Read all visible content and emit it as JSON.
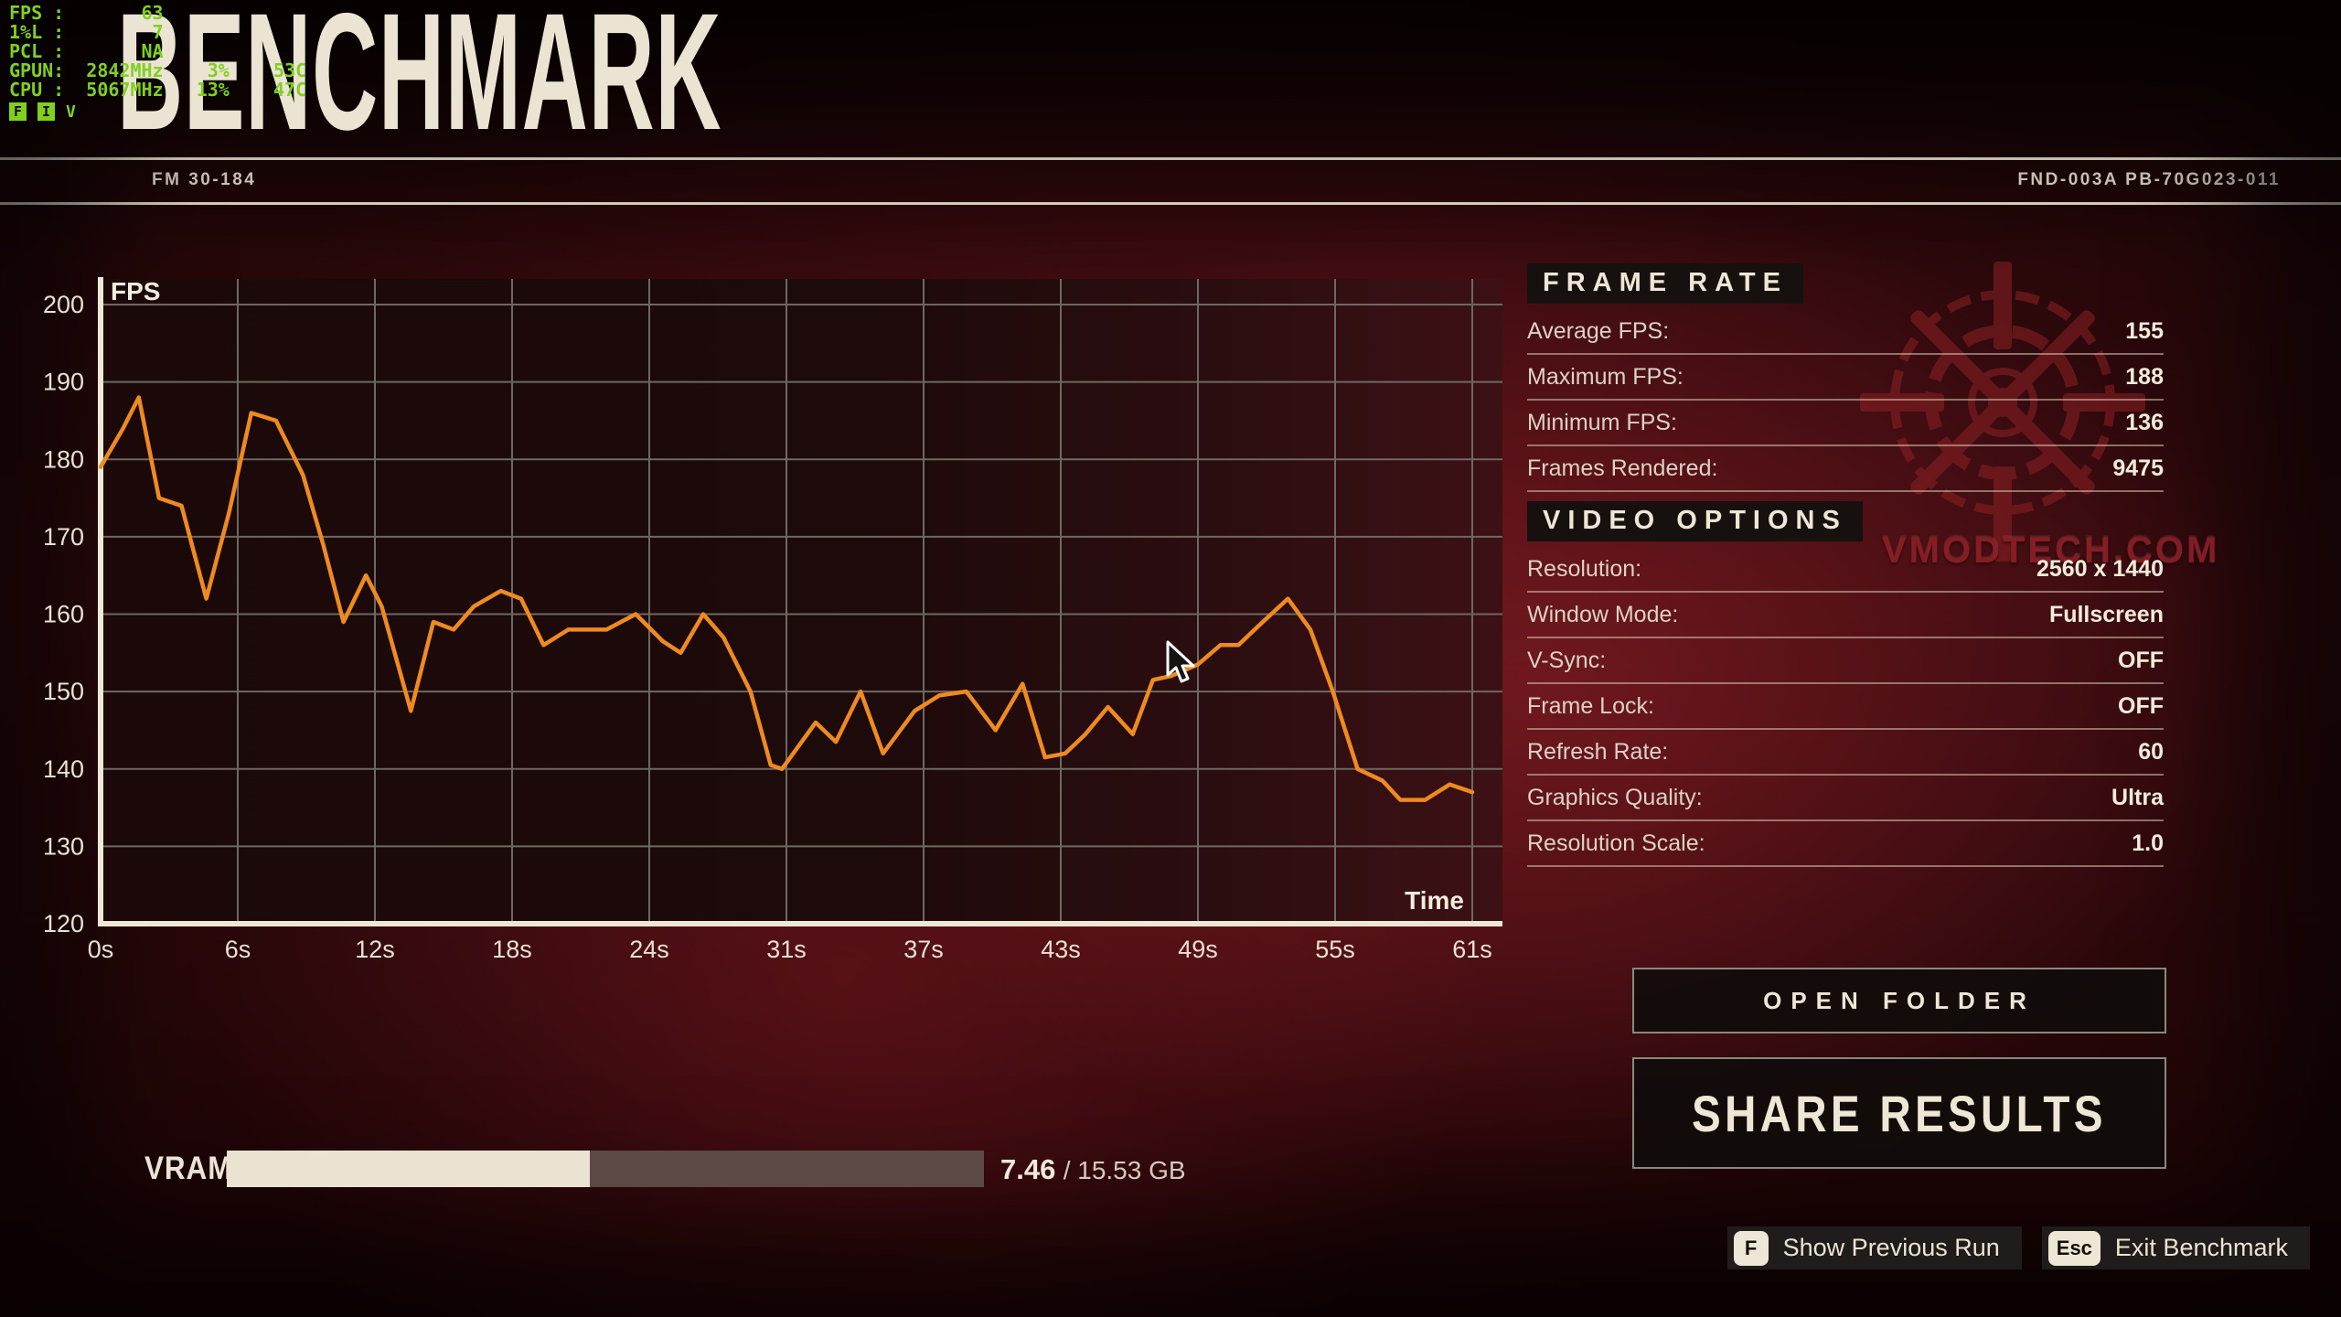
{
  "osd": {
    "rows": [
      {
        "label": "FPS",
        "value": "63"
      },
      {
        "label": "1%L",
        "value": "7"
      },
      {
        "label": "PCL",
        "value": "NA"
      },
      {
        "label": "GPUN",
        "value": "2842MHz",
        "pct": "3%",
        "temp": "53C"
      },
      {
        "label": "CPU",
        "value": "5067MHz",
        "pct": "13%",
        "temp": "47C"
      }
    ],
    "keys": [
      "F",
      "I",
      "V"
    ]
  },
  "header": {
    "title": "BENCHMARK",
    "left_code": "FM 30-184",
    "right_code": "FND-003A PB-70G023-011"
  },
  "chart_data": {
    "type": "line",
    "title": "FPS over time",
    "xlabel": "Time",
    "ylabel": "FPS",
    "xlim": [
      0,
      61
    ],
    "ylim": [
      120,
      200
    ],
    "grid": true,
    "x_ticks": [
      "0s",
      "6s",
      "12s",
      "18s",
      "24s",
      "31s",
      "37s",
      "43s",
      "49s",
      "55s",
      "61s"
    ],
    "x_tick_values": [
      0,
      6.1,
      12.2,
      18.3,
      24.4,
      30.5,
      36.6,
      42.7,
      48.8,
      54.9,
      61
    ],
    "y_ticks": [
      120,
      130,
      140,
      150,
      160,
      170,
      180,
      190,
      200
    ],
    "series": [
      {
        "name": "FPS",
        "color": "#ee8a1f",
        "points": [
          [
            0,
            179
          ],
          [
            1,
            184
          ],
          [
            1.7,
            188
          ],
          [
            2.6,
            175
          ],
          [
            3.6,
            174
          ],
          [
            4.7,
            162
          ],
          [
            5.7,
            173
          ],
          [
            6.7,
            186
          ],
          [
            7.8,
            185
          ],
          [
            9,
            178
          ],
          [
            9.9,
            169
          ],
          [
            10.8,
            159
          ],
          [
            11.8,
            165
          ],
          [
            12.5,
            161
          ],
          [
            13.8,
            147.5
          ],
          [
            14.8,
            159
          ],
          [
            15.7,
            158
          ],
          [
            16.6,
            161
          ],
          [
            17.8,
            163
          ],
          [
            18.7,
            162
          ],
          [
            19.7,
            156
          ],
          [
            20.8,
            158
          ],
          [
            22.5,
            158
          ],
          [
            23.8,
            160
          ],
          [
            25,
            156.5
          ],
          [
            25.8,
            155
          ],
          [
            26.8,
            160
          ],
          [
            27.7,
            157
          ],
          [
            28.9,
            150
          ],
          [
            29.8,
            140.5
          ],
          [
            30.3,
            140
          ],
          [
            31.8,
            146
          ],
          [
            32.7,
            143.5
          ],
          [
            33.8,
            150
          ],
          [
            34.8,
            142
          ],
          [
            36.2,
            147.5
          ],
          [
            37.3,
            149.5
          ],
          [
            38.5,
            150
          ],
          [
            39.8,
            145
          ],
          [
            41,
            151
          ],
          [
            42,
            141.5
          ],
          [
            42.9,
            142
          ],
          [
            43.8,
            144.5
          ],
          [
            44.8,
            148
          ],
          [
            45.9,
            144.5
          ],
          [
            46.8,
            151.5
          ],
          [
            47.6,
            152
          ],
          [
            48.8,
            153.5
          ],
          [
            49.8,
            156
          ],
          [
            50.6,
            156
          ],
          [
            51.5,
            158.5
          ],
          [
            52.8,
            162
          ],
          [
            53.8,
            158
          ],
          [
            54.8,
            150
          ],
          [
            55.9,
            140
          ],
          [
            57,
            138.5
          ],
          [
            57.8,
            136
          ],
          [
            58.9,
            136
          ],
          [
            60,
            138
          ],
          [
            61,
            137
          ]
        ]
      }
    ]
  },
  "frame_rate": {
    "header": "FRAME RATE",
    "rows": [
      {
        "label": "Average FPS:",
        "value": "155"
      },
      {
        "label": "Maximum FPS:",
        "value": "188"
      },
      {
        "label": "Minimum FPS:",
        "value": "136"
      },
      {
        "label": "Frames Rendered:",
        "value": "9475"
      }
    ]
  },
  "video_options": {
    "header": "VIDEO OPTIONS",
    "rows": [
      {
        "label": "Resolution:",
        "value": "2560 x 1440"
      },
      {
        "label": "Window Mode:",
        "value": "Fullscreen"
      },
      {
        "label": "V-Sync:",
        "value": "OFF"
      },
      {
        "label": "Frame Lock:",
        "value": "OFF"
      },
      {
        "label": "Refresh Rate:",
        "value": "60"
      },
      {
        "label": "Graphics Quality:",
        "value": "Ultra"
      },
      {
        "label": "Resolution Scale:",
        "value": "1.0"
      }
    ]
  },
  "watermark": "VMODTECH.COM",
  "buttons": {
    "open_folder": "OPEN FOLDER",
    "share_results": "SHARE RESULTS"
  },
  "vram": {
    "label": "VRAM",
    "used": "7.46",
    "total": "15.53 GB",
    "fraction": 0.48
  },
  "hints": [
    {
      "key": "F",
      "label": "Show Previous Run"
    },
    {
      "key": "Esc",
      "label": "Exit Benchmark"
    }
  ],
  "colors": {
    "line_orange": "#ee8a1f",
    "cream": "#efe7d5",
    "osd_green": "#7fd01f",
    "grid_gray": "#6e6862",
    "panel_black": "#16110f"
  }
}
